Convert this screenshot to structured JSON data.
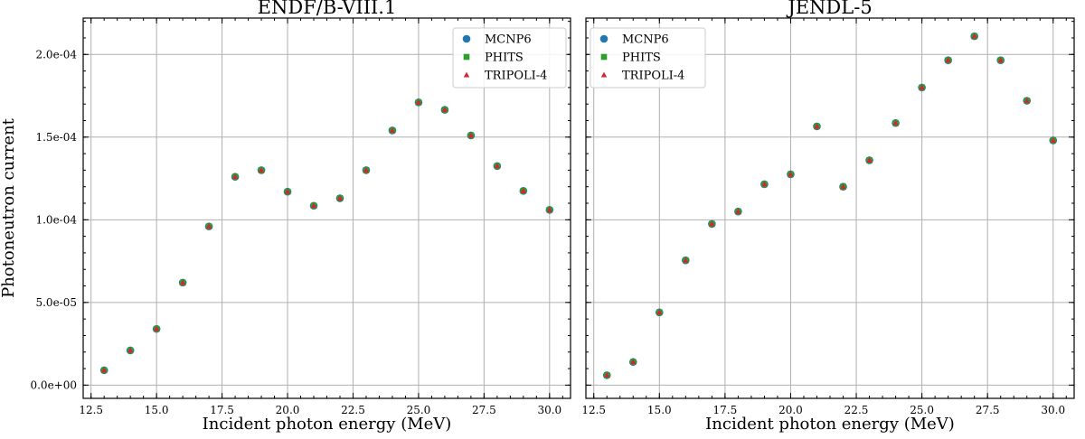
{
  "chart_data": [
    {
      "type": "scatter",
      "title": "ENDF/B-VIII.1",
      "xlabel": "Incident photon energy (MeV)",
      "ylabel": "Photoneutron current",
      "xlim": [
        12.2,
        30.8
      ],
      "ylim": [
        -8e-06,
        0.000222
      ],
      "xticks": [
        12.5,
        15.0,
        17.5,
        20.0,
        22.5,
        25.0,
        27.5,
        30.0
      ],
      "xtick_labels": [
        "12.5",
        "15.0",
        "17.5",
        "20.0",
        "22.5",
        "25.0",
        "27.5",
        "30.0"
      ],
      "yticks": [
        0,
        5e-05,
        0.0001,
        0.00015,
        0.0002
      ],
      "ytick_labels": [
        "0.0e+00",
        "5.0e-05",
        "1.0e-04",
        "1.5e-04",
        "2.0e-04"
      ],
      "grid": true,
      "legend": "top-right",
      "x": [
        13,
        14,
        15,
        16,
        17,
        18,
        19,
        20,
        21,
        22,
        23,
        24,
        25,
        26,
        27,
        28,
        29,
        30
      ],
      "series": [
        {
          "name": "MCNP6",
          "color": "#1f77b4",
          "marker": "circle",
          "values": [
            9e-06,
            2.1e-05,
            3.4e-05,
            6.2e-05,
            9.6e-05,
            0.000126,
            0.00013,
            0.000117,
            0.0001085,
            0.000113,
            0.00013,
            0.000154,
            0.000171,
            0.0001665,
            0.000151,
            0.0001325,
            0.0001175,
            0.000106
          ]
        },
        {
          "name": "PHITS",
          "color": "#2ca02c",
          "marker": "square",
          "values": [
            9e-06,
            2.1e-05,
            3.4e-05,
            6.2e-05,
            9.6e-05,
            0.000126,
            0.00013,
            0.000117,
            0.0001085,
            0.000113,
            0.00013,
            0.000154,
            0.000171,
            0.0001665,
            0.000151,
            0.0001325,
            0.0001175,
            0.000106
          ]
        },
        {
          "name": "TRIPOLI-4",
          "color": "#d62728",
          "marker": "triangle",
          "values": [
            9e-06,
            2.1e-05,
            3.4e-05,
            6.2e-05,
            9.6e-05,
            0.000126,
            0.00013,
            0.000117,
            0.0001085,
            0.000113,
            0.00013,
            0.000154,
            0.000171,
            0.0001665,
            0.000151,
            0.0001325,
            0.0001175,
            0.000106
          ]
        }
      ]
    },
    {
      "type": "scatter",
      "title": "JENDL-5",
      "xlabel": "Incident photon energy (MeV)",
      "ylabel": "",
      "xlim": [
        12.2,
        30.8
      ],
      "ylim": [
        -8e-06,
        0.000222
      ],
      "xticks": [
        12.5,
        15.0,
        17.5,
        20.0,
        22.5,
        25.0,
        27.5,
        30.0
      ],
      "xtick_labels": [
        "12.5",
        "15.0",
        "17.5",
        "20.0",
        "22.5",
        "25.0",
        "27.5",
        "30.0"
      ],
      "yticks": [
        0,
        5e-05,
        0.0001,
        0.00015,
        0.0002
      ],
      "ytick_labels": [],
      "grid": true,
      "legend": "top-left",
      "x": [
        13,
        14,
        15,
        16,
        17,
        18,
        19,
        20,
        21,
        22,
        23,
        24,
        25,
        26,
        27,
        28,
        29,
        30
      ],
      "series": [
        {
          "name": "MCNP6",
          "color": "#1f77b4",
          "marker": "circle",
          "values": [
            6e-06,
            1.4e-05,
            4.4e-05,
            7.55e-05,
            9.75e-05,
            0.000105,
            0.0001215,
            0.0001275,
            0.0001565,
            0.00012,
            0.000136,
            0.0001585,
            0.00018,
            0.0001965,
            0.000211,
            0.0001965,
            0.000172,
            0.000148
          ]
        },
        {
          "name": "PHITS",
          "color": "#2ca02c",
          "marker": "square",
          "values": [
            6e-06,
            1.4e-05,
            4.4e-05,
            7.55e-05,
            9.75e-05,
            0.000105,
            0.0001215,
            0.0001275,
            0.0001565,
            0.00012,
            0.000136,
            0.0001585,
            0.00018,
            0.0001965,
            0.000211,
            0.0001965,
            0.000172,
            0.000148
          ]
        },
        {
          "name": "TRIPOLI-4",
          "color": "#d62728",
          "marker": "triangle",
          "values": [
            6e-06,
            1.4e-05,
            4.4e-05,
            7.55e-05,
            9.75e-05,
            0.000105,
            0.0001215,
            0.0001275,
            0.0001565,
            0.00012,
            0.000136,
            0.0001585,
            0.00018,
            0.0001965,
            0.000211,
            0.0001965,
            0.000172,
            0.000148
          ]
        }
      ]
    }
  ]
}
